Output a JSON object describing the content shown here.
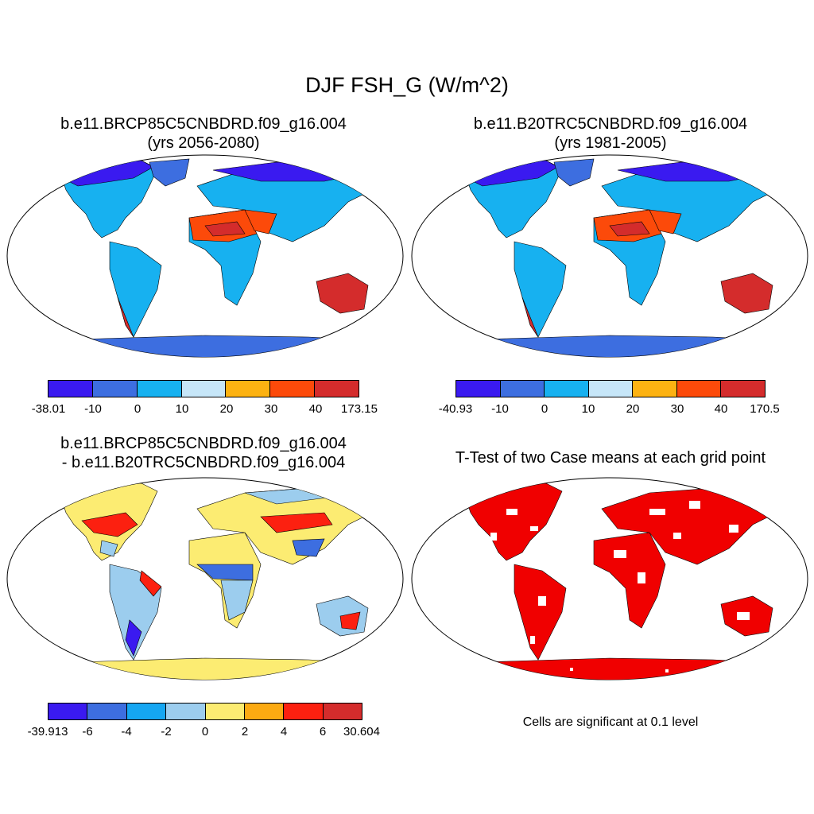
{
  "title": "DJF FSH_G (W/m^2)",
  "panels": [
    {
      "id": "case",
      "title_line1": "b.e11.BRCP85C5CNBDRD.f09_g16.004",
      "title_line2": "(yrs 2056-2080)",
      "colorbar": {
        "colors": [
          "#3a1af0",
          "#3d6ee0",
          "#17b1f0",
          "#c6e6f8",
          "#fcb212",
          "#fc4a0a",
          "#d42c2c"
        ],
        "labels": [
          "-38.01",
          "-10",
          "0",
          "10",
          "20",
          "30",
          "40",
          "173.15"
        ]
      }
    },
    {
      "id": "control",
      "title_line1": "b.e11.B20TRC5CNBDRD.f09_g16.004",
      "title_line2": "(yrs 1981-2005)",
      "colorbar": {
        "colors": [
          "#3a1af0",
          "#3d6ee0",
          "#17b1f0",
          "#c6e6f8",
          "#fcb212",
          "#fc4a0a",
          "#d42c2c"
        ],
        "labels": [
          "-40.93",
          "-10",
          "0",
          "10",
          "20",
          "30",
          "40",
          "170.5"
        ]
      }
    },
    {
      "id": "difference",
      "title_line1": "b.e11.BRCP85C5CNBDRD.f09_g16.004",
      "title_line2": "- b.e11.B20TRC5CNBDRD.f09_g16.004",
      "colorbar": {
        "colors": [
          "#3a1af0",
          "#3d6ee0",
          "#15a6f2",
          "#9ccdee",
          "#fcec72",
          "#fcaa12",
          "#fc2010",
          "#d42c2c"
        ],
        "labels": [
          "-39.913",
          "-6",
          "-4",
          "-2",
          "0",
          "2",
          "4",
          "6",
          "30.604"
        ]
      }
    },
    {
      "id": "ttest",
      "title_line1": "T-Test of two Case means at each grid point",
      "note": "Cells are significant at 0.1 level"
    }
  ],
  "colors": {
    "ocean": "#ffffff",
    "significant": "#f00000",
    "antarctica_case": "#3d6ee0",
    "antarctica_diff": "#fcec72"
  }
}
